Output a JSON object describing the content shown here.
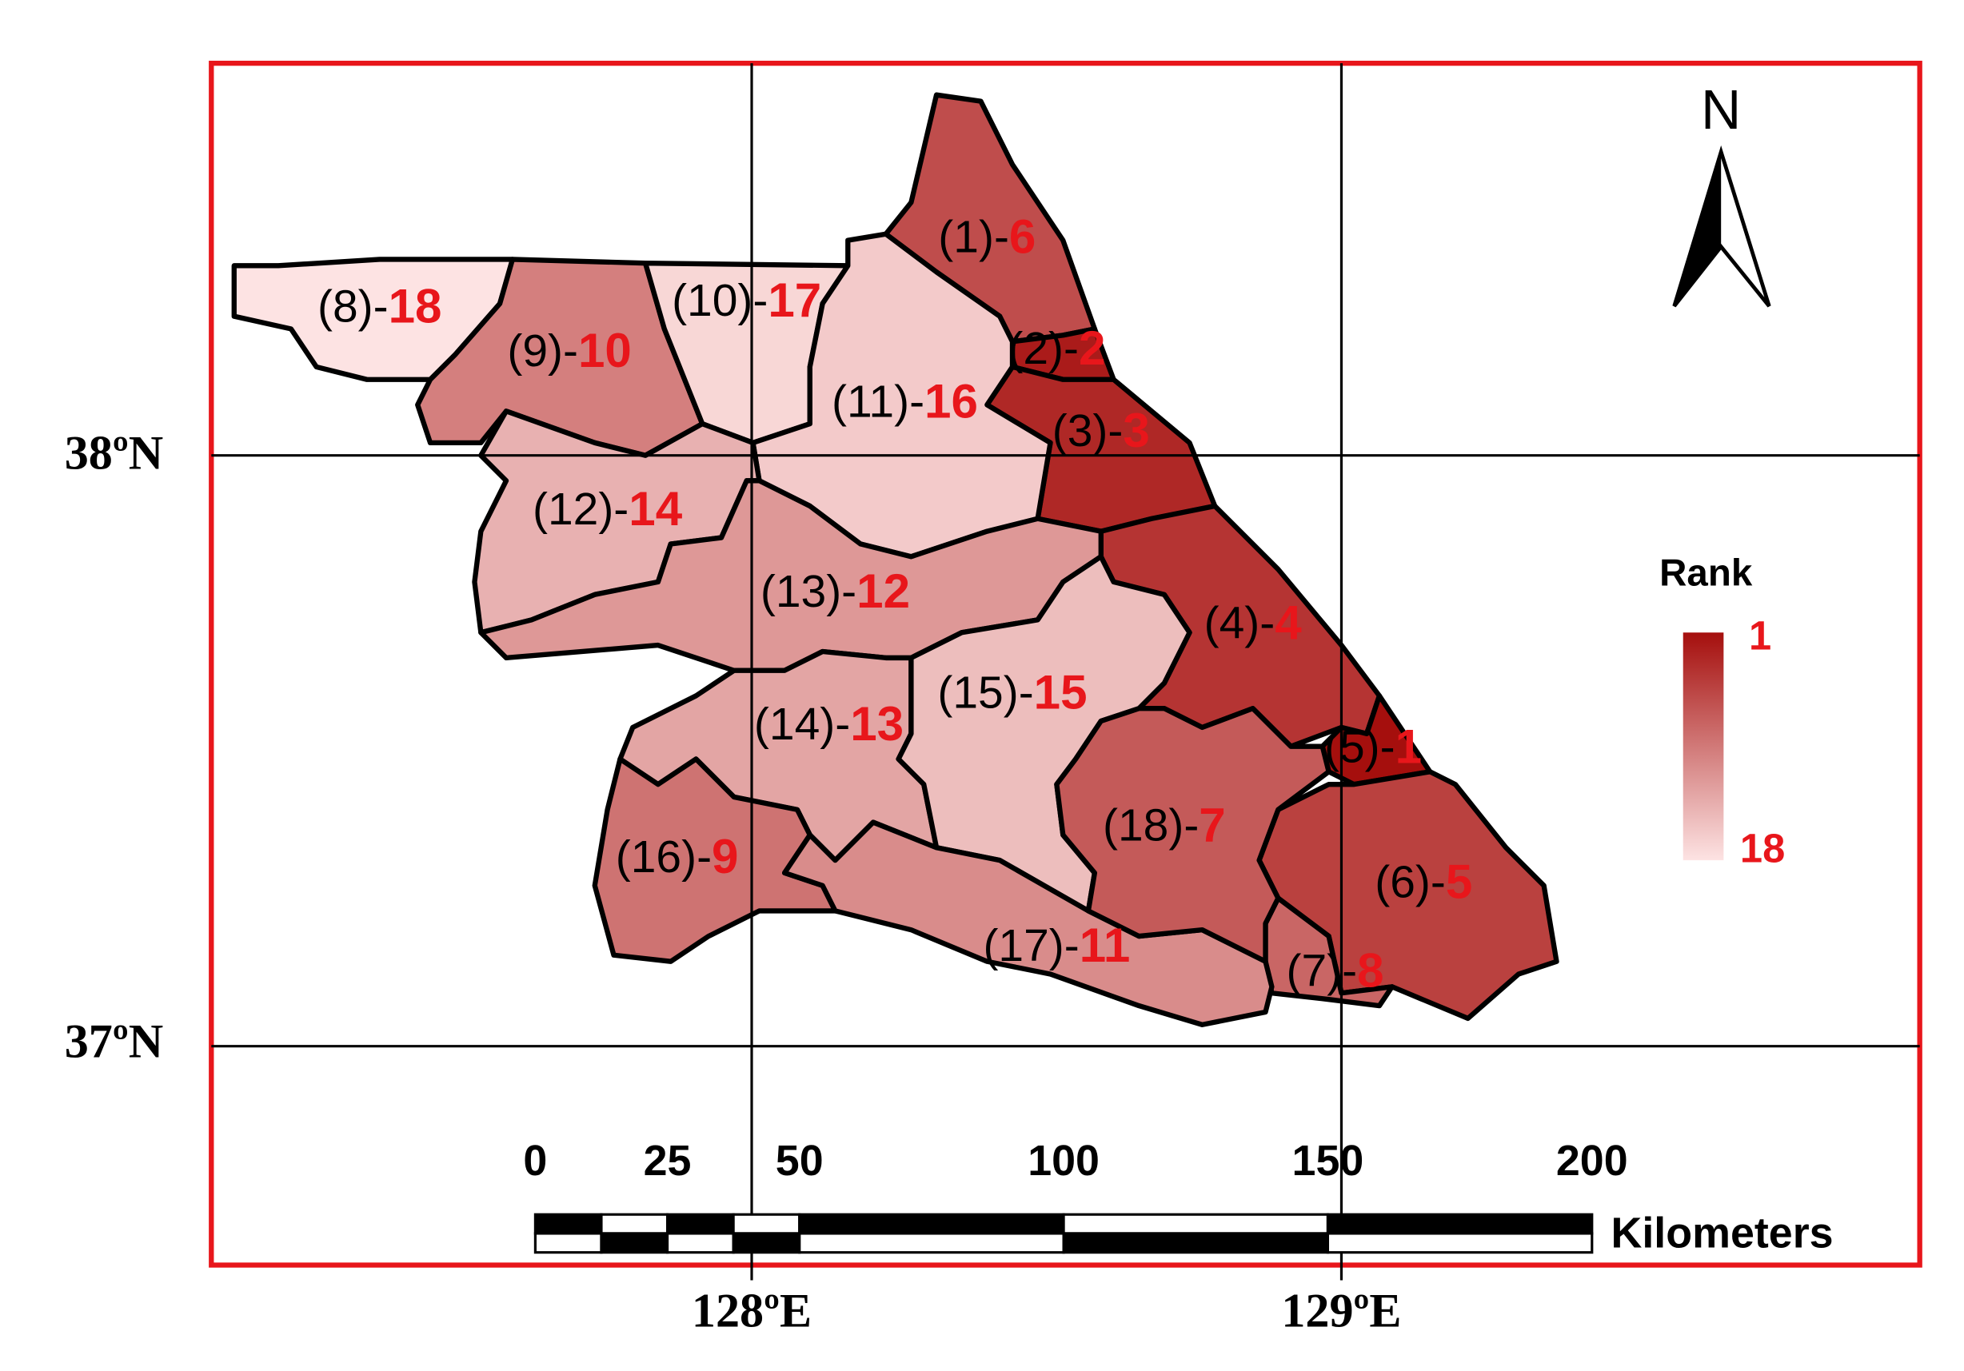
{
  "map": {
    "regions": [
      {
        "label": "(1)-",
        "rank": 6
      },
      {
        "label": "(2)-",
        "rank": 2
      },
      {
        "label": "(3)-",
        "rank": 3
      },
      {
        "label": "(4)-",
        "rank": 4
      },
      {
        "label": "(5)-",
        "rank": 1
      },
      {
        "label": "(6)-",
        "rank": 5
      },
      {
        "label": "(7)-",
        "rank": 8
      },
      {
        "label": "(8)-",
        "rank": 18
      },
      {
        "label": "(9)-",
        "rank": 10
      },
      {
        "label": "(10)-",
        "rank": 17
      },
      {
        "label": "(11)-",
        "rank": 16
      },
      {
        "label": "(12)-",
        "rank": 14
      },
      {
        "label": "(13)-",
        "rank": 12
      },
      {
        "label": "(14)-",
        "rank": 13
      },
      {
        "label": "(15)-",
        "rank": 15
      },
      {
        "label": "(16)-",
        "rank": 9
      },
      {
        "label": "(17)-",
        "rank": 11
      },
      {
        "label": "(18)-",
        "rank": 7
      }
    ],
    "latitude_labels": [
      "38ºN",
      "37ºN"
    ],
    "longitude_labels": [
      "128ºE",
      "129ºE"
    ],
    "north_label": "N",
    "legend": {
      "title": "Rank",
      "min": 1,
      "max": 18,
      "colors": [
        "#a50f0d",
        "#fde3e3"
      ]
    },
    "scale_bar": {
      "ticks": [
        0,
        25,
        50,
        100,
        150,
        200
      ],
      "unit": "Kilometers"
    }
  }
}
